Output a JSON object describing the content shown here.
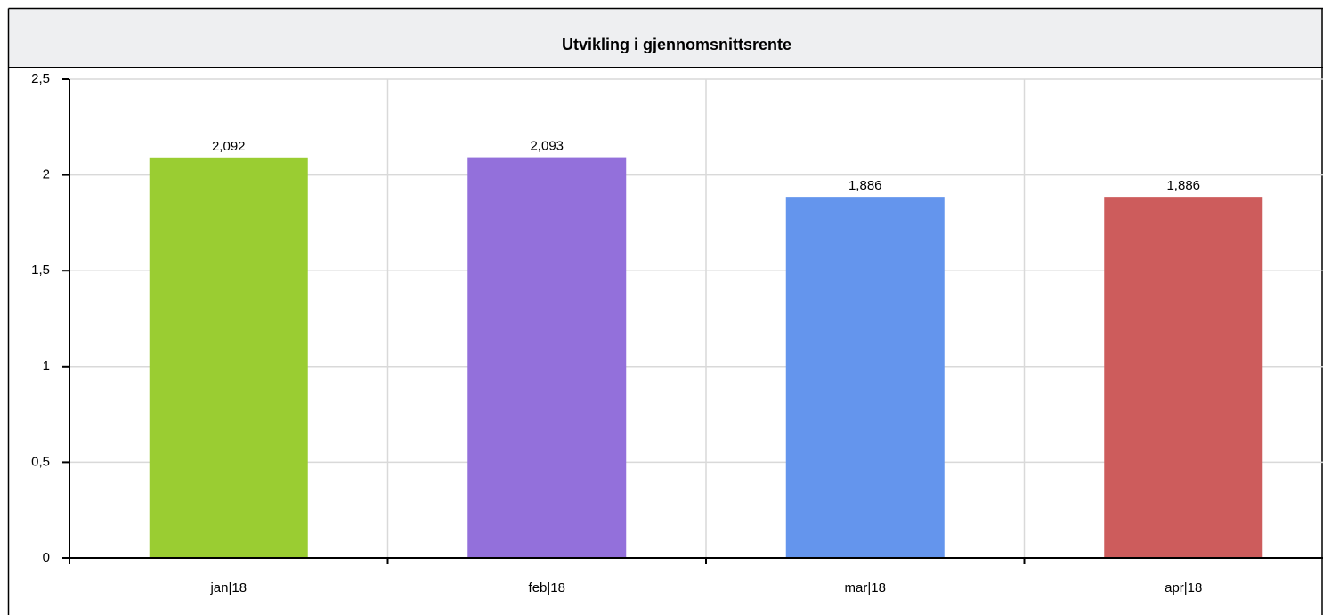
{
  "chart_data": {
    "type": "bar",
    "title": "Utvikling i gjennomsnittsrente",
    "categories": [
      "jan|18",
      "feb|18",
      "mar|18",
      "apr|18"
    ],
    "values": [
      2.092,
      2.093,
      1.886,
      1.886
    ],
    "value_labels": [
      "2,092",
      "2,093",
      "1,886",
      "1,886"
    ],
    "colors": [
      "#9acd32",
      "#9370db",
      "#6495ed",
      "#cd5c5c"
    ],
    "ylim": [
      0,
      2.5
    ],
    "yticks": [
      0,
      {
        "value": 0.5,
        "label": "0,5"
      },
      1,
      {
        "value": 1.5,
        "label": "1,5"
      },
      2,
      {
        "value": 2.5,
        "label": "2,5"
      }
    ],
    "grid": true
  }
}
